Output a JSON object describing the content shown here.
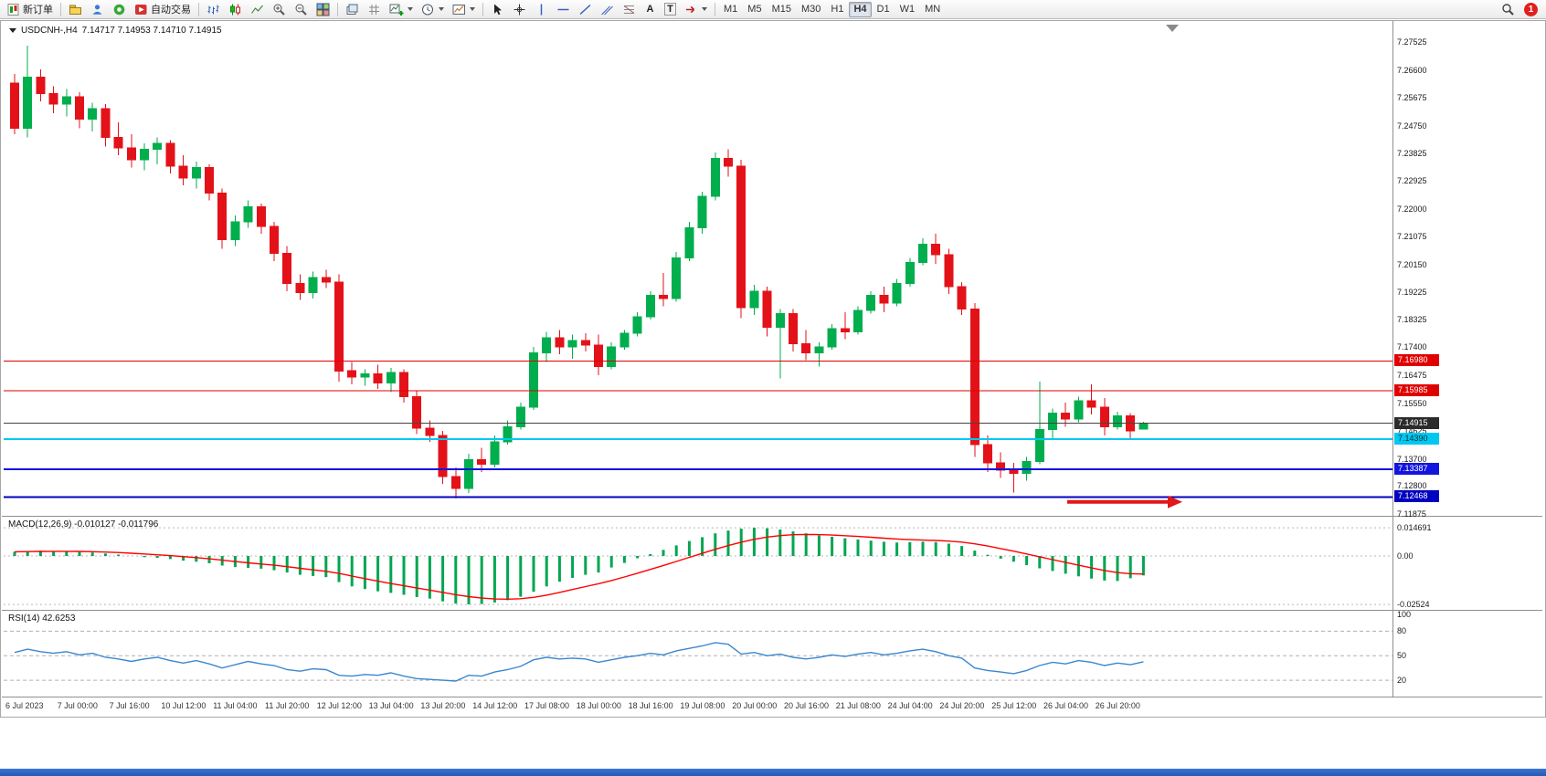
{
  "toolbar": {
    "new_order_label": "新订单",
    "auto_trading_label": "自动交易",
    "text_tool_label": "A",
    "label_tool_label": "T",
    "timeframes": [
      "M1",
      "M5",
      "M15",
      "M30",
      "H1",
      "H4",
      "D1",
      "W1",
      "MN"
    ],
    "active_timeframe": "H4",
    "notification_count": "1"
  },
  "chart": {
    "symbol_label": "USDCNH-,H4",
    "ohlc_label": "7.14717 7.14953 7.14710 7.14915",
    "price_axis_labels": [
      "7.27525",
      "7.26600",
      "7.25675",
      "7.24750",
      "7.23825",
      "7.22925",
      "7.22000",
      "7.21075",
      "7.20150",
      "7.19225",
      "7.18325",
      "7.17400",
      "7.16475",
      "7.15550",
      "7.14625",
      "7.13700",
      "7.12800",
      "7.11875"
    ],
    "price_tags": [
      {
        "price": "7.16980",
        "color": "#e00000",
        "text": "#ffffff"
      },
      {
        "price": "7.15985",
        "color": "#e00000",
        "text": "#ffffff"
      },
      {
        "price": "7.14915",
        "color": "#2b2b2b",
        "text": "#ffffff"
      },
      {
        "price": "7.14390",
        "color": "#00c8f0",
        "text": "#00303a"
      },
      {
        "price": "7.13387",
        "color": "#1414e0",
        "text": "#ffffff"
      },
      {
        "price": "7.12468",
        "color": "#0000c0",
        "text": "#ffffff"
      }
    ],
    "hlines": [
      {
        "price": 7.1698,
        "color": "#e00000",
        "width": 1
      },
      {
        "price": 7.15985,
        "color": "#e00000",
        "width": 1
      },
      {
        "price": 7.14915,
        "color": "#444444",
        "width": 1
      },
      {
        "price": 7.1439,
        "color": "#00c8f0",
        "width": 2
      },
      {
        "price": 7.13387,
        "color": "#1414e0",
        "width": 2
      },
      {
        "price": 7.12468,
        "color": "#0000c0",
        "width": 2
      }
    ],
    "arrow": {
      "price": 7.123,
      "color": "#e01818"
    },
    "time_axis_labels": [
      "6 Jul 2023",
      "7 Jul 00:00",
      "7 Jul 16:00",
      "10 Jul 12:00",
      "11 Jul 04:00",
      "11 Jul 20:00",
      "12 Jul 12:00",
      "13 Jul 04:00",
      "13 Jul 20:00",
      "14 Jul 12:00",
      "17 Jul 08:00",
      "18 Jul 00:00",
      "18 Jul 16:00",
      "19 Jul 08:00",
      "20 Jul 00:00",
      "20 Jul 16:00",
      "21 Jul 08:00",
      "24 Jul 04:00",
      "24 Jul 20:00",
      "25 Jul 12:00",
      "26 Jul 04:00",
      "26 Jul 20:00"
    ]
  },
  "indicators": {
    "macd": {
      "label": "MACD(12,26,9)",
      "values_label": "-0.010127 -0.011796",
      "axis": [
        "0.014691",
        "0.00",
        "-0.02524"
      ]
    },
    "rsi": {
      "label": "RSI(14)",
      "value_label": "42.6253",
      "axis": [
        "100",
        "80",
        "50",
        "20"
      ]
    }
  },
  "chart_data": [
    {
      "type": "candlestick",
      "title": "USDCNH- H4",
      "ylim": [
        7.1184,
        7.282
      ],
      "up_color": "#00ae4d",
      "down_color": "#e31219",
      "label_every_n_candles": 4,
      "x_labels": [
        "6 Jul 2023",
        "7 Jul 00:00",
        "7 Jul 16:00",
        "10 Jul 12:00",
        "11 Jul 04:00",
        "11 Jul 20:00",
        "12 Jul 12:00",
        "13 Jul 04:00",
        "13 Jul 20:00",
        "14 Jul 12:00",
        "17 Jul 08:00",
        "18 Jul 00:00",
        "18 Jul 16:00",
        "19 Jul 08:00",
        "20 Jul 00:00",
        "20 Jul 16:00",
        "21 Jul 08:00",
        "24 Jul 04:00",
        "24 Jul 20:00",
        "25 Jul 12:00",
        "26 Jul 04:00",
        "26 Jul 20:00"
      ],
      "candles": [
        [
          7.262,
          7.265,
          7.245,
          7.247
        ],
        [
          7.247,
          7.2745,
          7.244,
          7.264
        ],
        [
          7.264,
          7.2665,
          7.256,
          7.2585
        ],
        [
          7.2585,
          7.261,
          7.252,
          7.255
        ],
        [
          7.255,
          7.26,
          7.251,
          7.2575
        ],
        [
          7.2575,
          7.259,
          7.247,
          7.25
        ],
        [
          7.25,
          7.2555,
          7.246,
          7.2535
        ],
        [
          7.2535,
          7.255,
          7.241,
          7.244
        ],
        [
          7.244,
          7.249,
          7.238,
          7.2405
        ],
        [
          7.2405,
          7.245,
          7.234,
          7.2365
        ],
        [
          7.2365,
          7.242,
          7.233,
          7.24
        ],
        [
          7.24,
          7.244,
          7.235,
          7.242
        ],
        [
          7.242,
          7.243,
          7.232,
          7.2345
        ],
        [
          7.2345,
          7.238,
          7.228,
          7.2305
        ],
        [
          7.2305,
          7.236,
          7.227,
          7.234
        ],
        [
          7.234,
          7.235,
          7.223,
          7.2255
        ],
        [
          7.2255,
          7.227,
          7.207,
          7.21
        ],
        [
          7.21,
          7.218,
          7.208,
          7.216
        ],
        [
          7.216,
          7.223,
          7.214,
          7.221
        ],
        [
          7.221,
          7.222,
          7.212,
          7.2145
        ],
        [
          7.2145,
          7.216,
          7.203,
          7.2055
        ],
        [
          7.2055,
          7.208,
          7.193,
          7.1955
        ],
        [
          7.1955,
          7.1985,
          7.19,
          7.1925
        ],
        [
          7.1925,
          7.1995,
          7.1905,
          7.1975
        ],
        [
          7.1975,
          7.2,
          7.194,
          7.196
        ],
        [
          7.196,
          7.1985,
          7.163,
          7.1665
        ],
        [
          7.1665,
          7.1695,
          7.162,
          7.1645
        ],
        [
          7.1645,
          7.167,
          7.1615,
          7.1655
        ],
        [
          7.1655,
          7.1685,
          7.1605,
          7.1625
        ],
        [
          7.1625,
          7.1675,
          7.1595,
          7.166
        ],
        [
          7.166,
          7.167,
          7.156,
          7.158
        ],
        [
          7.158,
          7.16,
          7.1455,
          7.1475
        ],
        [
          7.1475,
          7.15,
          7.143,
          7.145
        ],
        [
          7.145,
          7.1465,
          7.129,
          7.1315
        ],
        [
          7.1315,
          7.1345,
          7.1242,
          7.1275
        ],
        [
          7.1275,
          7.139,
          7.126,
          7.137
        ],
        [
          7.137,
          7.141,
          7.133,
          7.1355
        ],
        [
          7.1355,
          7.145,
          7.1345,
          7.143
        ],
        [
          7.143,
          7.15,
          7.142,
          7.148
        ],
        [
          7.148,
          7.156,
          7.147,
          7.1545
        ],
        [
          7.1545,
          7.1745,
          7.1535,
          7.1725
        ],
        [
          7.1725,
          7.1795,
          7.1695,
          7.1775
        ],
        [
          7.1775,
          7.18,
          7.172,
          7.1745
        ],
        [
          7.1745,
          7.1785,
          7.1705,
          7.1765
        ],
        [
          7.1765,
          7.179,
          7.173,
          7.175
        ],
        [
          7.175,
          7.1785,
          7.165,
          7.168
        ],
        [
          7.168,
          7.176,
          7.167,
          7.1745
        ],
        [
          7.1745,
          7.18,
          7.1735,
          7.179
        ],
        [
          7.179,
          7.186,
          7.178,
          7.1845
        ],
        [
          7.1845,
          7.193,
          7.1835,
          7.1915
        ],
        [
          7.1915,
          7.199,
          7.188,
          7.1905
        ],
        [
          7.1905,
          7.206,
          7.1895,
          7.204
        ],
        [
          7.204,
          7.216,
          7.203,
          7.214
        ],
        [
          7.214,
          7.226,
          7.212,
          7.2245
        ],
        [
          7.2245,
          7.239,
          7.223,
          7.237
        ],
        [
          7.237,
          7.24,
          7.231,
          7.2345
        ],
        [
          7.2345,
          7.2365,
          7.184,
          7.1875
        ],
        [
          7.1875,
          7.195,
          7.185,
          7.193
        ],
        [
          7.193,
          7.1945,
          7.178,
          7.181
        ],
        [
          7.181,
          7.187,
          7.164,
          7.1855
        ],
        [
          7.1855,
          7.187,
          7.173,
          7.1755
        ],
        [
          7.1755,
          7.18,
          7.17,
          7.1725
        ],
        [
          7.1725,
          7.176,
          7.168,
          7.1745
        ],
        [
          7.1745,
          7.182,
          7.1735,
          7.1805
        ],
        [
          7.1805,
          7.186,
          7.177,
          7.1795
        ],
        [
          7.1795,
          7.188,
          7.1785,
          7.1865
        ],
        [
          7.1865,
          7.193,
          7.1855,
          7.1915
        ],
        [
          7.1915,
          7.1945,
          7.186,
          7.189
        ],
        [
          7.189,
          7.197,
          7.188,
          7.1955
        ],
        [
          7.1955,
          7.204,
          7.1945,
          7.2025
        ],
        [
          7.2025,
          7.2105,
          7.2015,
          7.2085
        ],
        [
          7.2085,
          7.212,
          7.202,
          7.205
        ],
        [
          7.205,
          7.207,
          7.192,
          7.1945
        ],
        [
          7.1945,
          7.196,
          7.185,
          7.187
        ],
        [
          7.187,
          7.189,
          7.138,
          7.142
        ],
        [
          7.142,
          7.145,
          7.133,
          7.136
        ],
        [
          7.136,
          7.1395,
          7.131,
          7.1335
        ],
        [
          7.1335,
          7.136,
          7.1262,
          7.1325
        ],
        [
          7.1325,
          7.138,
          7.13,
          7.1365
        ],
        [
          7.1365,
          7.163,
          7.1355,
          7.147
        ],
        [
          7.147,
          7.154,
          7.144,
          7.1525
        ],
        [
          7.1525,
          7.156,
          7.148,
          7.1505
        ],
        [
          7.1505,
          7.158,
          7.1495,
          7.1565
        ],
        [
          7.1565,
          7.162,
          7.152,
          7.1545
        ],
        [
          7.1545,
          7.1575,
          7.145,
          7.148
        ],
        [
          7.148,
          7.153,
          7.147,
          7.1515
        ],
        [
          7.1515,
          7.1525,
          7.144,
          7.1465
        ],
        [
          7.14717,
          7.14953,
          7.1471,
          7.14915
        ]
      ]
    },
    {
      "type": "bar",
      "title": "MACD(12,26,9)",
      "bar_color": "#00a650",
      "line_color": "#ff0000",
      "current_macd": -0.010127,
      "current_signal": -0.011796,
      "signal_period": 9,
      "ylim": [
        -0.0285,
        0.02
      ],
      "axis_ticks": [
        0.014691,
        0,
        -0.02524
      ],
      "values": [
        0.0022,
        0.0026,
        0.0028,
        0.0026,
        0.0024,
        0.0021,
        0.0018,
        0.0013,
        0.0007,
        0.0,
        -0.0006,
        -0.001,
        -0.0016,
        -0.0024,
        -0.003,
        -0.0038,
        -0.005,
        -0.0058,
        -0.0062,
        -0.0066,
        -0.0074,
        -0.0086,
        -0.0098,
        -0.0104,
        -0.011,
        -0.0136,
        -0.0158,
        -0.0172,
        -0.0184,
        -0.0192,
        -0.0202,
        -0.0214,
        -0.0222,
        -0.0236,
        -0.0248,
        -0.0252,
        -0.025,
        -0.0242,
        -0.023,
        -0.0212,
        -0.0186,
        -0.0158,
        -0.0134,
        -0.0114,
        -0.0098,
        -0.0086,
        -0.006,
        -0.0036,
        -0.0012,
        0.001,
        0.0032,
        0.0055,
        0.0078,
        0.0098,
        0.0118,
        0.0132,
        0.0142,
        0.0147,
        0.0144,
        0.0138,
        0.0128,
        0.0118,
        0.0108,
        0.01,
        0.0092,
        0.0086,
        0.008,
        0.0074,
        0.007,
        0.0072,
        0.0074,
        0.0072,
        0.0064,
        0.0052,
        0.0028,
        0.0006,
        -0.0014,
        -0.003,
        -0.0048,
        -0.0064,
        -0.0078,
        -0.0092,
        -0.0106,
        -0.0118,
        -0.0128,
        -0.013,
        -0.0116,
        -0.0101
      ]
    },
    {
      "type": "line",
      "title": "RSI(14)",
      "line_color": "#3a87cf",
      "current": 42.6253,
      "levels": [
        80,
        50,
        20
      ],
      "ylim": [
        0,
        105
      ],
      "values": [
        54,
        58,
        55,
        53,
        55,
        51,
        53,
        48,
        46,
        43,
        46,
        48,
        44,
        41,
        44,
        40,
        35,
        39,
        43,
        40,
        38,
        33,
        31,
        34,
        33,
        26,
        25,
        27,
        26,
        29,
        25,
        22,
        21,
        20,
        19,
        26,
        25,
        30,
        33,
        37,
        45,
        48,
        46,
        47,
        46,
        42,
        45,
        48,
        50,
        53,
        51,
        56,
        59,
        62,
        66,
        64,
        52,
        54,
        50,
        52,
        48,
        46,
        48,
        51,
        49,
        52,
        54,
        51,
        53,
        56,
        58,
        55,
        50,
        47,
        35,
        32,
        30,
        28,
        32,
        38,
        42,
        40,
        44,
        42,
        38,
        41,
        39,
        42.6
      ]
    }
  ]
}
